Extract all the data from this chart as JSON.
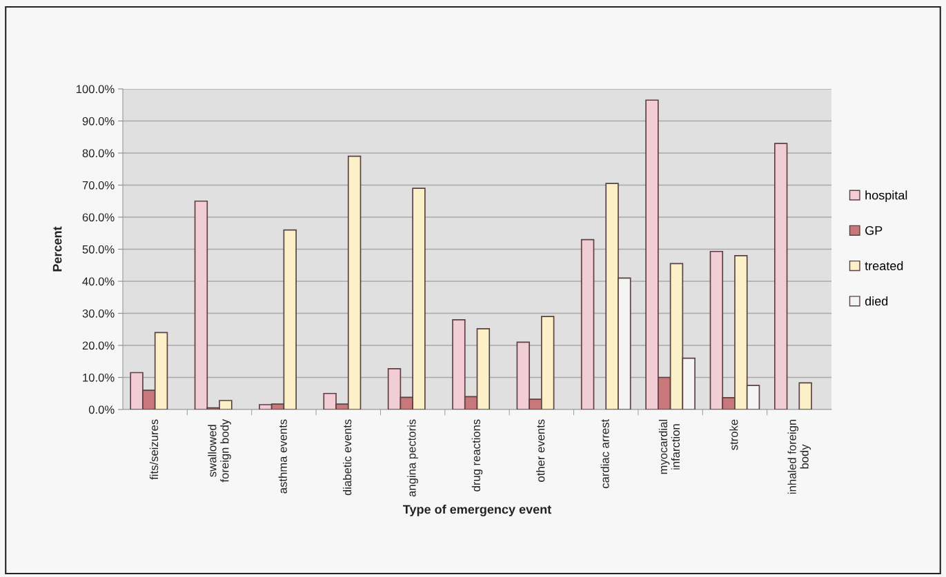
{
  "chart_data": {
    "type": "bar",
    "xlabel": "Type of emergency event",
    "ylabel": "Percent",
    "categories": [
      "fits/seizures",
      "swallowed\nforeign body",
      "asthma events",
      "diabetic events",
      "angina pectoris",
      "drug reactions",
      "other events",
      "cardiac arrest",
      "myocardial\ninfarction",
      "stroke",
      "inhaled foreign\nbody"
    ],
    "series": [
      {
        "name": "hospital",
        "color": "#f2cdd6",
        "values": [
          11.5,
          65,
          1.5,
          5,
          12.7,
          28,
          21,
          53,
          96.5,
          49.3,
          83
        ]
      },
      {
        "name": "GP",
        "color": "#c8777a",
        "values": [
          6,
          0.5,
          1.7,
          1.7,
          3.8,
          4,
          3.2,
          null,
          10,
          3.7,
          null
        ]
      },
      {
        "name": "treated",
        "color": "#fbf0c8",
        "values": [
          24,
          2.8,
          56,
          79,
          69,
          25.2,
          29,
          70.5,
          45.5,
          48,
          8.3
        ]
      },
      {
        "name": "died",
        "color": "#f4f4f4",
        "values": [
          null,
          null,
          null,
          null,
          null,
          null,
          null,
          41,
          16,
          7.5,
          null
        ]
      }
    ],
    "ylim": [
      0,
      100
    ],
    "yticks": [
      {
        "value": 0,
        "label": "0.0%"
      },
      {
        "value": 10,
        "label": "10.0%"
      },
      {
        "value": 20,
        "label": "20.0%"
      },
      {
        "value": 30,
        "label": "30.0%"
      },
      {
        "value": 40,
        "label": "40.0%"
      },
      {
        "value": 50,
        "label": "50.0%"
      },
      {
        "value": 60,
        "label": "60.0%"
      },
      {
        "value": 70,
        "label": "70.0%"
      },
      {
        "value": 80,
        "label": "80.0%"
      },
      {
        "value": 90,
        "label": "90.0%"
      },
      {
        "value": 100,
        "label": "100.0%"
      }
    ],
    "grid": "y",
    "legend": "right"
  }
}
